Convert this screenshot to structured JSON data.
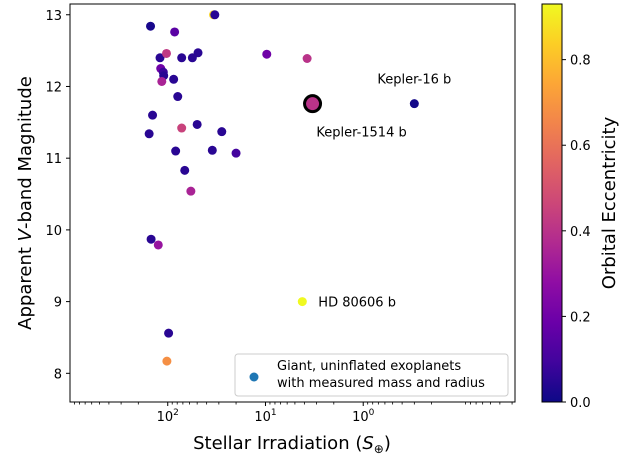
{
  "chart_data": {
    "type": "scatter",
    "xlabel_prefix": "Stellar Irradiation (",
    "xlabel_var": "S",
    "xlabel_sub": "⊕",
    "xlabel_suffix": ")",
    "ylabel_prefix": "Apparent ",
    "ylabel_var": "V",
    "ylabel_suffix": "-band Magnitude",
    "x_scale": "log",
    "x_reversed": true,
    "xlim": [
      1000,
      0.028
    ],
    "ylim": [
      7.6,
      13.15
    ],
    "x_ticks": [
      {
        "value": 100,
        "base": "10",
        "exp": "2"
      },
      {
        "value": 10,
        "base": "10",
        "exp": "1"
      },
      {
        "value": 1,
        "base": "10",
        "exp": "0"
      }
    ],
    "y_ticks": [
      8,
      9,
      10,
      11,
      12,
      13
    ],
    "colorbar": {
      "label": "Orbital Eccentricity",
      "colormap": "plasma",
      "range": [
        0,
        0.93
      ],
      "ticks": [
        "0.0",
        "0.2",
        "0.4",
        "0.6",
        "0.8"
      ],
      "tick_values": [
        0,
        0.2,
        0.4,
        0.6,
        0.8
      ]
    },
    "legend": {
      "placement": "lower-right",
      "lines": [
        "Giant, uninflated exoplanets",
        "with measured mass and radius"
      ],
      "marker_color": "#1f77b4"
    },
    "points": [
      {
        "x": 150,
        "y": 12.84,
        "e": 0.02
      },
      {
        "x": 85,
        "y": 12.76,
        "e": 0.15
      },
      {
        "x": 34,
        "y": 13.0,
        "e": 0.85
      },
      {
        "x": 33,
        "y": 13.0,
        "e": 0.05
      },
      {
        "x": 120,
        "y": 12.4,
        "e": 0.05
      },
      {
        "x": 72,
        "y": 12.4,
        "e": 0.05
      },
      {
        "x": 56,
        "y": 12.4,
        "e": 0.05
      },
      {
        "x": 49,
        "y": 12.47,
        "e": 0.05
      },
      {
        "x": 103,
        "y": 12.46,
        "e": 0.42
      },
      {
        "x": 118,
        "y": 12.25,
        "e": 0.2
      },
      {
        "x": 111,
        "y": 12.2,
        "e": 0.08
      },
      {
        "x": 110,
        "y": 12.15,
        "e": 0.05
      },
      {
        "x": 87,
        "y": 12.1,
        "e": 0.05
      },
      {
        "x": 115,
        "y": 12.07,
        "e": 0.35
      },
      {
        "x": 79,
        "y": 11.86,
        "e": 0.05
      },
      {
        "x": 143,
        "y": 11.6,
        "e": 0.05
      },
      {
        "x": 72,
        "y": 11.42,
        "e": 0.45
      },
      {
        "x": 50,
        "y": 11.47,
        "e": 0.05
      },
      {
        "x": 155,
        "y": 11.34,
        "e": 0.05
      },
      {
        "x": 28,
        "y": 11.37,
        "e": 0.05
      },
      {
        "x": 83,
        "y": 11.1,
        "e": 0.05
      },
      {
        "x": 35,
        "y": 11.11,
        "e": 0.05
      },
      {
        "x": 20,
        "y": 11.07,
        "e": 0.1
      },
      {
        "x": 67,
        "y": 10.83,
        "e": 0.05
      },
      {
        "x": 58,
        "y": 10.54,
        "e": 0.35
      },
      {
        "x": 148,
        "y": 9.87,
        "e": 0.05
      },
      {
        "x": 125,
        "y": 9.79,
        "e": 0.3
      },
      {
        "x": 98,
        "y": 8.56,
        "e": 0.05
      },
      {
        "x": 102,
        "y": 8.17,
        "e": 0.68
      },
      {
        "x": 9.7,
        "y": 12.45,
        "e": 0.2
      },
      {
        "x": 3.75,
        "y": 12.39,
        "e": 0.4
      },
      {
        "x": 0.3,
        "y": 11.76,
        "e": 0.01
      },
      {
        "x": 4.2,
        "y": 9.0,
        "e": 0.93
      },
      {
        "x": 3.3,
        "y": 11.76,
        "e": 0.4,
        "highlight": true
      }
    ],
    "annotations": [
      {
        "text": "Kepler-16 b",
        "x": 0.3,
        "y": 11.76
      },
      {
        "text": "Kepler-1514 b",
        "x": 3.3,
        "y": 11.76
      },
      {
        "text": "HD 80606 b",
        "x": 4.2,
        "y": 9.0
      }
    ]
  }
}
